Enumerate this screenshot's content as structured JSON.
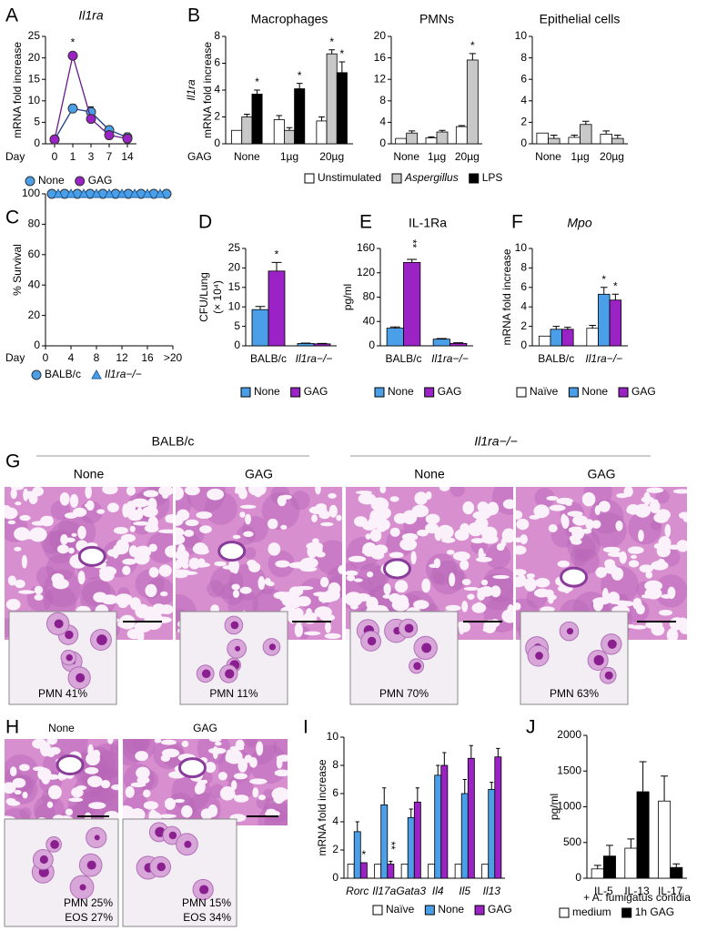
{
  "chart_data": [
    {
      "type": "line",
      "panel": "A",
      "title": "Il1ra",
      "ylabel": [
        "mRNA fold increase"
      ],
      "xlabel": "Day",
      "categories": [
        "0",
        "1",
        "3",
        "7",
        "14"
      ],
      "ylim": [
        0,
        25
      ],
      "yticks": [
        0,
        5,
        10,
        15,
        20,
        25
      ],
      "legend": true,
      "series": [
        {
          "name": "None",
          "color": "#4a9fe8",
          "marker": "circle",
          "values": [
            1,
            8.2,
            7.4,
            3.2,
            1.5
          ],
          "errors": [
            0.3,
            1,
            1.2,
            0.8,
            1
          ]
        },
        {
          "name": "GAG",
          "color": "#9b22c4",
          "marker": "circle",
          "values": [
            1,
            20.5,
            5.8,
            2,
            1.2
          ],
          "errors": [
            0.3,
            0.8,
            0.7,
            0.5,
            0.5
          ],
          "annotations": [
            null,
            "*",
            null,
            null,
            null
          ]
        }
      ]
    },
    {
      "type": "bar",
      "panel": "B",
      "title": "Macrophages",
      "ylabel": [
        "Il1ra",
        "mRNA fold increase"
      ],
      "xlabel": "GAG",
      "categories": [
        "None",
        "1µg",
        "20µg"
      ],
      "ylim": [
        0,
        8
      ],
      "yticks": [
        0,
        2,
        4,
        6,
        8
      ],
      "legend": true,
      "series": [
        {
          "name": "Unstimulated",
          "color": "#ffffff",
          "values": [
            1,
            1.8,
            1.7
          ],
          "errors": [
            null,
            0.3,
            0.3
          ]
        },
        {
          "name": "Aspergillus",
          "color": "#c8c8c8",
          "values": [
            2,
            1,
            6.7
          ],
          "errors": [
            0.2,
            0.2,
            0.3
          ],
          "annotations": [
            null,
            null,
            "*"
          ]
        },
        {
          "name": "LPS",
          "color": "#000000",
          "values": [
            3.7,
            4.1,
            5.3
          ],
          "errors": [
            0.3,
            0.4,
            0.8
          ],
          "annotations": [
            "*",
            "*",
            "*"
          ]
        }
      ]
    },
    {
      "type": "bar",
      "title": "PMNs",
      "categories": [
        "None",
        "1µg",
        "20µg"
      ],
      "ylim": [
        0,
        20
      ],
      "yticks": [
        0,
        4,
        8,
        12,
        16,
        20
      ],
      "series": [
        {
          "color": "#ffffff",
          "values": [
            1,
            1.1,
            3.2
          ],
          "errors": [
            null,
            0.2,
            0.2
          ]
        },
        {
          "color": "#c8c8c8",
          "values": [
            2,
            2.2,
            15.6
          ],
          "errors": [
            0.4,
            0.3,
            1.2
          ],
          "annotations": [
            null,
            null,
            "*"
          ]
        }
      ]
    },
    {
      "type": "bar",
      "title": "Epithelial cells",
      "categories": [
        "None",
        "1µg",
        "20µg"
      ],
      "ylim": [
        0,
        10
      ],
      "yticks": [
        0,
        2,
        4,
        6,
        8,
        10
      ],
      "series": [
        {
          "color": "#ffffff",
          "values": [
            1,
            0.6,
            0.9
          ],
          "errors": [
            null,
            0.2,
            0.3
          ]
        },
        {
          "color": "#c8c8c8",
          "values": [
            0.5,
            1.8,
            0.5
          ],
          "errors": [
            0.3,
            0.3,
            0.3
          ]
        }
      ]
    },
    {
      "type": "scatter",
      "panel": "C",
      "ylabel": [
        "% Survival"
      ],
      "xlabel": "Day",
      "xlim": [
        0,
        20
      ],
      "xticks": [
        0,
        4,
        8,
        12,
        16,
        {
          "value": 20,
          "label": ">20"
        }
      ],
      "ylim": [
        0,
        100
      ],
      "yticks": [
        0,
        20,
        40,
        60,
        80,
        100
      ],
      "legend": true,
      "series": [
        {
          "name": "BALB/c",
          "color": "#4a9fe8",
          "marker": "circle",
          "x": [
            1,
            3,
            5,
            7,
            9,
            11,
            13,
            15,
            17,
            19
          ],
          "values": [
            100,
            100,
            100,
            100,
            100,
            100,
            100,
            100,
            100,
            100
          ]
        },
        {
          "name": "Il1ra−/−",
          "color": "#4a9fe8",
          "marker": "triangle",
          "x": [
            2,
            4,
            6,
            8,
            10,
            12,
            14,
            16,
            18
          ],
          "values": [
            100,
            100,
            100,
            100,
            100,
            100,
            100,
            100,
            100
          ]
        }
      ]
    },
    {
      "type": "bar",
      "panel": "D",
      "ylabel": [
        "CFU/Lung",
        "(× 10⁴)"
      ],
      "categories": [
        "BALB/c",
        "Il1ra−/−"
      ],
      "ylim": [
        0,
        25
      ],
      "yticks": [
        0,
        5,
        10,
        15,
        20,
        25
      ],
      "legend": true,
      "series": [
        {
          "name": "None",
          "color": "#4a9fe8",
          "values": [
            9.3,
            0.6
          ],
          "errors": [
            0.8,
            0.1
          ]
        },
        {
          "name": "GAG",
          "color": "#9b22c4",
          "values": [
            19.2,
            0.5
          ],
          "errors": [
            2.2,
            0.1
          ],
          "annotations": [
            "*",
            null
          ]
        }
      ]
    },
    {
      "type": "bar",
      "panel": "E",
      "title": "IL-1Ra",
      "ylabel": [
        "pg/ml"
      ],
      "categories": [
        "BALB/c",
        "Il1ra−/−"
      ],
      "ylim": [
        0,
        160
      ],
      "yticks": [
        0,
        40,
        80,
        120,
        160
      ],
      "legend": true,
      "series": [
        {
          "name": "None",
          "color": "#4a9fe8",
          "values": [
            29,
            11
          ],
          "errors": [
            2,
            1
          ]
        },
        {
          "name": "GAG",
          "color": "#9b22c4",
          "values": [
            137,
            4
          ],
          "errors": [
            5,
            1
          ],
          "annotations": [
            "**",
            null
          ]
        }
      ]
    },
    {
      "type": "bar",
      "panel": "F",
      "title": "Mpo",
      "ylabel": [
        "mRNA fold increase"
      ],
      "categories": [
        "BALB/c",
        "Il1ra−/−"
      ],
      "ylim": [
        0,
        10
      ],
      "yticks": [
        0,
        2,
        4,
        6,
        8,
        10
      ],
      "legend": true,
      "series": [
        {
          "name": "Naïve",
          "color": "#ffffff",
          "values": [
            1,
            1.8
          ],
          "errors": [
            null,
            0.3
          ]
        },
        {
          "name": "None",
          "color": "#4a9fe8",
          "values": [
            1.7,
            5.3
          ],
          "errors": [
            0.3,
            0.7
          ],
          "annotations": [
            null,
            "*"
          ]
        },
        {
          "name": "GAG",
          "color": "#9b22c4",
          "values": [
            1.7,
            4.7
          ],
          "errors": [
            0.2,
            0.6
          ],
          "annotations": [
            null,
            "*"
          ]
        }
      ]
    },
    {
      "type": "bar",
      "panel": "I",
      "ylabel": [
        "mRNA fold increase"
      ],
      "categories": [
        "Rorc",
        "Il17a",
        "Gata3",
        "Il4",
        "Il5",
        "Il13"
      ],
      "ylim": [
        0,
        10
      ],
      "yticks": [
        0,
        2,
        4,
        6,
        8,
        10
      ],
      "legend": true,
      "series": [
        {
          "name": "Naïve",
          "color": "#ffffff",
          "values": [
            1,
            1,
            1,
            1,
            1,
            1
          ]
        },
        {
          "name": "None",
          "color": "#4a9fe8",
          "values": [
            3.3,
            5.2,
            4.3,
            7.3,
            6,
            6.3
          ],
          "errors": [
            0.7,
            1.2,
            0.6,
            0.7,
            1,
            0.5
          ]
        },
        {
          "name": "GAG",
          "color": "#9b22c4",
          "values": [
            1.1,
            1,
            5.4,
            8,
            8.5,
            8.6
          ],
          "errors": [
            null,
            0.2,
            1,
            0.9,
            0.9,
            0.6
          ],
          "annotations": [
            "*",
            "**",
            null,
            null,
            null,
            null
          ]
        }
      ]
    },
    {
      "type": "bar",
      "panel": "J",
      "ylabel": [
        "pg/ml"
      ],
      "xlabel": "+ A. fumigatus conidia",
      "categories": [
        "IL-5",
        "IL-13",
        "IL-17"
      ],
      "ylim": [
        0,
        2000
      ],
      "yticks": [
        0,
        500,
        1000,
        1500,
        2000
      ],
      "legend": true,
      "series": [
        {
          "name": "medium",
          "color": "#ffffff",
          "values": [
            130,
            420,
            1080
          ],
          "errors": [
            50,
            130,
            350
          ]
        },
        {
          "name": "1h GAG",
          "color": "#000000",
          "values": [
            310,
            1210,
            150
          ],
          "errors": [
            150,
            420,
            50
          ]
        }
      ]
    }
  ],
  "histology": [
    {
      "panel": "G",
      "groups": [
        "BALB/c",
        "Il1ra−/−"
      ],
      "images": [
        {
          "label": "None",
          "inset": [
            "PMN 41%"
          ]
        },
        {
          "label": "GAG",
          "inset": [
            "PMN 11%"
          ]
        },
        {
          "label": "None",
          "inset": [
            "PMN 70%"
          ]
        },
        {
          "label": "GAG",
          "inset": [
            "PMN 63%"
          ]
        }
      ]
    },
    {
      "panel": "H",
      "images": [
        {
          "label": "None",
          "inset": [
            "PMN 25%",
            "EOS 27%"
          ]
        },
        {
          "label": "GAG",
          "inset": [
            "PMN 15%",
            "EOS 34%"
          ]
        }
      ]
    }
  ]
}
